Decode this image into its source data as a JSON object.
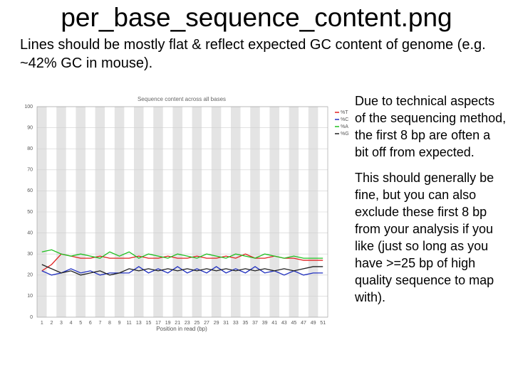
{
  "slide": {
    "title": "per_base_sequence_content.png",
    "subtitle": "Lines should be mostly flat & reflect expected GC content of genome (e.g. ~42% GC in mouse).",
    "notes": [
      "Due to technical aspects of the sequencing method, the first 8 bp are often a bit off from expected.",
      "This should generally be fine, but you can also exclude these first 8 bp from your analysis if you like (just so long as you have >=25 bp of high quality sequence to map with)."
    ]
  },
  "chart_data": {
    "type": "line",
    "title": "Sequence content across all bases",
    "x_label": "Position in read (bp)",
    "categories": [
      "1",
      "2",
      "3",
      "4",
      "5",
      "6",
      "7",
      "8",
      "9",
      "11",
      "13",
      "15",
      "17",
      "19",
      "21",
      "23",
      "25",
      "27",
      "29",
      "31",
      "33",
      "35",
      "37",
      "39",
      "41",
      "43",
      "45",
      "47",
      "49",
      "51"
    ],
    "series": [
      {
        "name": "%T",
        "color": "#e02020",
        "values": [
          22,
          25,
          30,
          29,
          28,
          28,
          29,
          28,
          28,
          28,
          29,
          28,
          28,
          29,
          28,
          28,
          29,
          28,
          28,
          29,
          28,
          30,
          28,
          28,
          29,
          28,
          28,
          27,
          27,
          27
        ]
      },
      {
        "name": "%C",
        "color": "#2030c0",
        "values": [
          22,
          20,
          21,
          23,
          21,
          22,
          20,
          21,
          21,
          21,
          24,
          21,
          23,
          21,
          24,
          21,
          23,
          21,
          24,
          21,
          23,
          21,
          24,
          21,
          22,
          20,
          22,
          20,
          21,
          21
        ]
      },
      {
        "name": "%A",
        "color": "#20c020",
        "values": [
          31,
          32,
          30,
          29,
          30,
          29,
          28,
          31,
          29,
          31,
          28,
          30,
          29,
          28,
          30,
          29,
          28,
          30,
          29,
          28,
          30,
          29,
          28,
          30,
          29,
          28,
          29,
          28,
          28,
          28
        ]
      },
      {
        "name": "%G",
        "color": "#202020",
        "values": [
          25,
          23,
          21,
          22,
          20,
          21,
          22,
          20,
          21,
          23,
          22,
          23,
          22,
          23,
          22,
          23,
          22,
          23,
          22,
          23,
          22,
          23,
          22,
          23,
          22,
          23,
          22,
          23,
          24,
          24
        ]
      }
    ],
    "ylim": [
      0,
      100
    ],
    "yticks": [
      0,
      10,
      20,
      30,
      40,
      50,
      60,
      70,
      80,
      90,
      100
    ],
    "grid": true,
    "legend": "right"
  }
}
